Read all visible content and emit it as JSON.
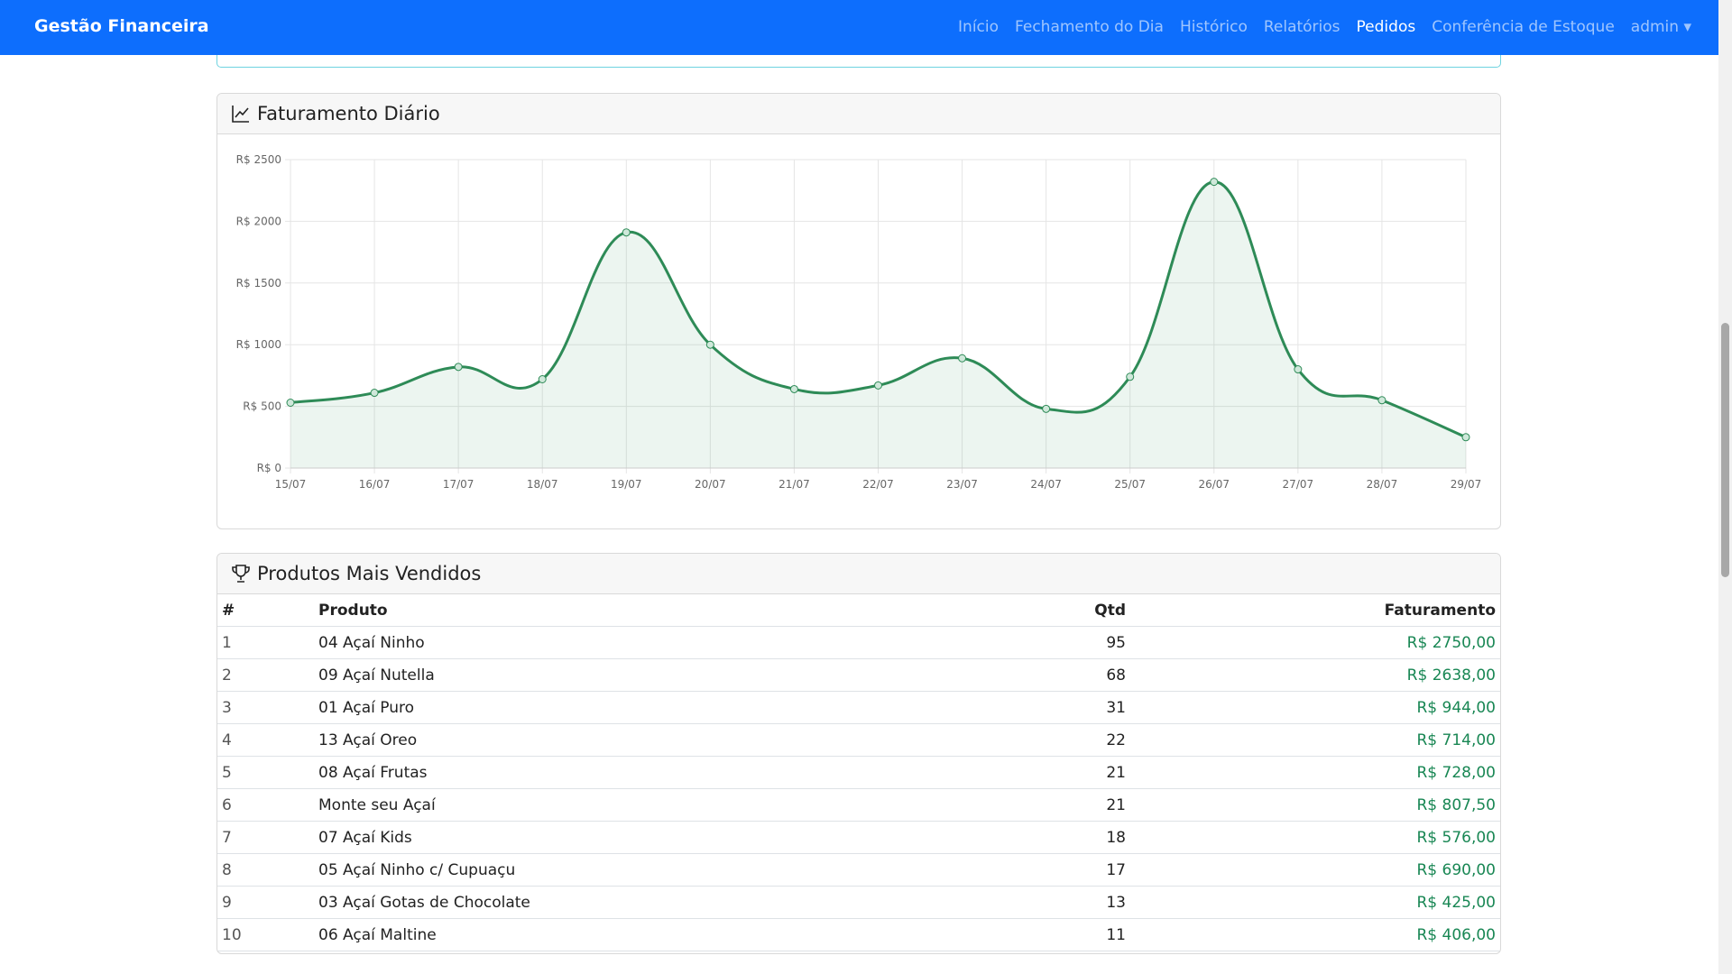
{
  "navbar": {
    "brand": "Gestão Financeira",
    "links": [
      "Início",
      "Fechamento do Dia",
      "Histórico",
      "Relatórios",
      "Pedidos",
      "Conferência de Estoque"
    ],
    "user": "admin"
  },
  "chart_data": {
    "type": "line",
    "title": "Faturamento Diário",
    "categories": [
      "15/07",
      "16/07",
      "17/07",
      "18/07",
      "19/07",
      "20/07",
      "21/07",
      "22/07",
      "23/07",
      "24/07",
      "25/07",
      "26/07",
      "27/07",
      "28/07",
      "29/07"
    ],
    "values": [
      530,
      610,
      820,
      720,
      1910,
      1000,
      640,
      670,
      890,
      480,
      740,
      2320,
      800,
      550,
      250
    ],
    "color": "#2e8b57",
    "ylim": [
      0,
      2500
    ],
    "yticks": [
      {
        "value": 0,
        "label": "R$ 0"
      },
      {
        "value": 500,
        "label": "R$ 500"
      },
      {
        "value": 1000,
        "label": "R$ 1000"
      },
      {
        "value": 1500,
        "label": "R$ 1500"
      },
      {
        "value": 2000,
        "label": "R$ 2000"
      },
      {
        "value": 2500,
        "label": "R$ 2500"
      }
    ],
    "grid": true
  },
  "table": {
    "title": "Produtos Mais Vendidos",
    "header": [
      "#",
      "Produto",
      "Qtd",
      "Faturamento"
    ],
    "rows": [
      [
        1,
        "04 Açaí Ninho",
        95,
        "R$ 2750,00"
      ],
      [
        2,
        "09 Açaí Nutella",
        68,
        "R$ 2638,00"
      ],
      [
        3,
        "01 Açaí Puro",
        31,
        "R$ 944,00"
      ],
      [
        4,
        "13 Açaí Oreo",
        22,
        "R$ 714,00"
      ],
      [
        5,
        "08 Açaí Frutas",
        21,
        "R$ 728,00"
      ],
      [
        6,
        "Monte seu Açaí",
        21,
        "R$ 807,50"
      ],
      [
        7,
        "07 Açaí Kids",
        18,
        "R$ 576,00"
      ],
      [
        8,
        "05 Açaí Ninho c/ Cupuaçu",
        17,
        "R$ 690,00"
      ],
      [
        9,
        "03 Açaí Gotas de Chocolate",
        13,
        "R$ 425,00"
      ],
      [
        10,
        "06 Açaí Maltine",
        11,
        "R$ 406,00"
      ]
    ]
  }
}
